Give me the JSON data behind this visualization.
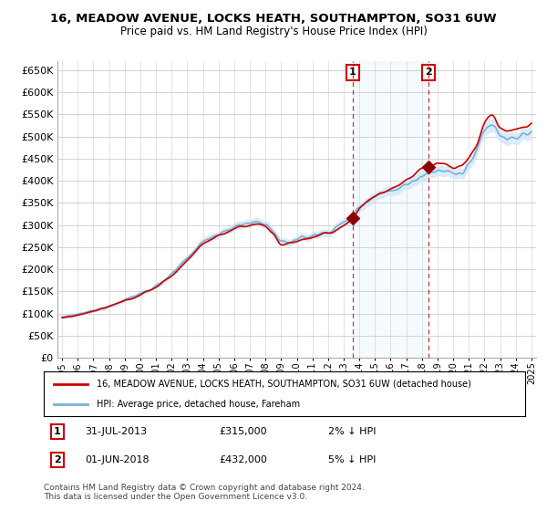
{
  "title": "16, MEADOW AVENUE, LOCKS HEATH, SOUTHAMPTON, SO31 6UW",
  "subtitle": "Price paid vs. HM Land Registry's House Price Index (HPI)",
  "legend_line1": "16, MEADOW AVENUE, LOCKS HEATH, SOUTHAMPTON, SO31 6UW (detached house)",
  "legend_line2": "HPI: Average price, detached house, Fareham",
  "sale1_date": "31-JUL-2013",
  "sale1_price": 315000,
  "sale1_label": "1",
  "sale1_year": 2013.58,
  "sale2_date": "01-JUN-2018",
  "sale2_price": 432000,
  "sale2_label": "2",
  "sale2_year": 2018.42,
  "footnote1": "Contains HM Land Registry data © Crown copyright and database right 2024.",
  "footnote2": "This data is licensed under the Open Government Licence v3.0.",
  "ylim": [
    0,
    670000
  ],
  "yticks": [
    0,
    50000,
    100000,
    150000,
    200000,
    250000,
    300000,
    350000,
    400000,
    450000,
    500000,
    550000,
    600000,
    650000
  ],
  "xlim_start": 1994.7,
  "xlim_end": 2025.3,
  "xticks": [
    1995,
    1996,
    1997,
    1998,
    1999,
    2000,
    2001,
    2002,
    2003,
    2004,
    2005,
    2006,
    2007,
    2008,
    2009,
    2010,
    2011,
    2012,
    2013,
    2014,
    2015,
    2016,
    2017,
    2018,
    2019,
    2020,
    2021,
    2022,
    2023,
    2024,
    2025
  ],
  "property_color": "#cc0000",
  "hpi_color": "#7ab0d4",
  "hpi_fill_color": "#d6e9f8",
  "sale_marker_color": "#8b0000",
  "vline_color": "#cc0000",
  "highlight_fill": "#daeeff",
  "bg_color": "#ffffff",
  "grid_color": "#cccccc"
}
